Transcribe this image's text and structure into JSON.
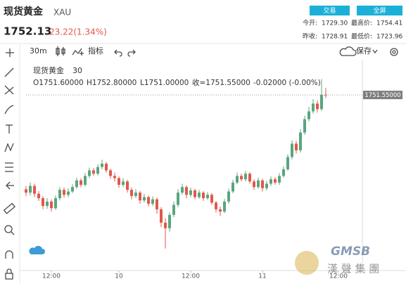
{
  "header": {
    "title": "现货黄金",
    "symbol": "XAU",
    "price": "1752.13",
    "change": "23.22(1.34%)",
    "buttons": [
      "交易",
      "全屏"
    ],
    "stats": [
      {
        "label": "今开:",
        "value": "1729.30"
      },
      {
        "label": "最高价:",
        "value": "1754.41"
      },
      {
        "label": "昨收:",
        "value": "1728.91"
      },
      {
        "label": "最低价:",
        "value": "1723.96"
      }
    ]
  },
  "toolbar": {
    "interval": "30m",
    "indicators": "指标",
    "save": "保存"
  },
  "chart_data": {
    "type": "candlestick",
    "legend": {
      "name": "现货黄金",
      "interval": "30",
      "open": "O1751.60000",
      "high": "H1752.80000",
      "low": "L1751.00000",
      "close": "收=1751.55000",
      "change": "-0.02000 (-0.00%)"
    },
    "up_color": "#5aa57e",
    "down_color": "#e0584b",
    "ylim": [
      1720,
      1757.5
    ],
    "last_price": {
      "value": 1751.55,
      "label": "1751.55000"
    },
    "categories": [
      null,
      null,
      null,
      null,
      null,
      null,
      "12:00",
      null,
      null,
      null,
      null,
      null,
      null,
      null,
      null,
      null,
      null,
      null,
      null,
      null,
      null,
      null,
      "10",
      null,
      null,
      null,
      null,
      null,
      null,
      null,
      null,
      null,
      null,
      null,
      null,
      null,
      null,
      null,
      null,
      "12:00",
      null,
      null,
      null,
      null,
      null,
      null,
      null,
      null,
      null,
      null,
      null,
      null,
      null,
      null,
      null,
      null,
      "11",
      null,
      null,
      null,
      null,
      null,
      null,
      null,
      null,
      null,
      null,
      null,
      null,
      null,
      null,
      null,
      null,
      null,
      "12:00",
      null
    ],
    "open": [
      1734.6,
      1734.0,
      1735.2,
      1733.8,
      1733.0,
      1731.6,
      1732.4,
      1731.2,
      1733.0,
      1734.5,
      1733.6,
      1734.2,
      1735.0,
      1736.2,
      1735.4,
      1737.0,
      1738.0,
      1737.4,
      1738.6,
      1739.2,
      1738.0,
      1737.0,
      1736.6,
      1735.4,
      1736.0,
      1734.5,
      1733.4,
      1734.0,
      1732.6,
      1733.2,
      1732.0,
      1732.8,
      1731.0,
      1728.6,
      1727.6,
      1730.0,
      1731.8,
      1734.0,
      1735.0,
      1733.6,
      1734.4,
      1733.2,
      1734.0,
      1733.0,
      1733.6,
      1732.2,
      1731.0,
      1730.6,
      1732.4,
      1734.2,
      1735.8,
      1737.0,
      1736.4,
      1737.4,
      1736.0,
      1735.0,
      1736.2,
      1734.8,
      1735.6,
      1736.4,
      1735.8,
      1737.0,
      1738.2,
      1740.4,
      1742.8,
      1741.6,
      1744.8,
      1747.2,
      1748.6,
      1750.0,
      1749.0,
      1751.6,
      null,
      null,
      null,
      null
    ],
    "high": [
      1735.2,
      1735.8,
      1735.6,
      1734.3,
      1733.4,
      1733.0,
      1732.8,
      1733.5,
      1735.0,
      1734.9,
      1734.8,
      1735.5,
      1736.7,
      1736.6,
      1737.5,
      1738.5,
      1738.4,
      1739.1,
      1739.9,
      1739.5,
      1738.3,
      1737.6,
      1736.9,
      1736.6,
      1736.3,
      1734.9,
      1734.6,
      1734.3,
      1733.8,
      1733.5,
      1733.3,
      1733.1,
      1731.4,
      1729.4,
      1730.5,
      1732.4,
      1734.6,
      1735.6,
      1735.3,
      1734.9,
      1734.7,
      1734.5,
      1734.3,
      1734.1,
      1733.9,
      1732.5,
      1731.5,
      1732.9,
      1734.7,
      1736.3,
      1737.6,
      1737.4,
      1737.9,
      1737.7,
      1736.4,
      1736.7,
      1736.5,
      1736.1,
      1736.9,
      1736.8,
      1737.5,
      1738.7,
      1740.9,
      1743.4,
      1743.3,
      1745.4,
      1747.8,
      1749.4,
      1750.8,
      1750.6,
      1754.41,
      1752.8,
      null,
      null,
      null,
      null
    ],
    "low": [
      1733.4,
      1733.5,
      1733.2,
      1732.5,
      1731.0,
      1731.1,
      1730.6,
      1730.9,
      1732.6,
      1733.1,
      1733.2,
      1733.9,
      1734.7,
      1735.0,
      1735.1,
      1736.6,
      1737.0,
      1737.1,
      1738.2,
      1737.6,
      1736.5,
      1736.0,
      1734.9,
      1735.0,
      1734.0,
      1732.8,
      1733.0,
      1732.0,
      1732.2,
      1731.5,
      1731.6,
      1730.2,
      1727.8,
      1723.96,
      1727.0,
      1729.6,
      1731.4,
      1733.6,
      1733.0,
      1733.2,
      1732.8,
      1732.9,
      1732.5,
      1732.7,
      1731.8,
      1730.4,
      1729.8,
      1730.3,
      1732.0,
      1733.9,
      1735.5,
      1736.0,
      1736.0,
      1735.6,
      1734.5,
      1734.7,
      1734.2,
      1734.4,
      1735.2,
      1735.4,
      1735.4,
      1736.7,
      1737.9,
      1740.0,
      1741.0,
      1741.2,
      1744.4,
      1746.8,
      1748.2,
      1748.4,
      1748.7,
      1751.0,
      null,
      null,
      null,
      null
    ],
    "close": [
      1734.0,
      1735.2,
      1733.8,
      1733.0,
      1731.6,
      1732.4,
      1731.2,
      1733.0,
      1734.5,
      1733.6,
      1734.2,
      1735.0,
      1736.2,
      1735.4,
      1737.0,
      1738.0,
      1737.4,
      1738.6,
      1739.2,
      1738.0,
      1737.0,
      1736.6,
      1735.4,
      1736.0,
      1734.5,
      1733.4,
      1734.0,
      1732.6,
      1733.2,
      1732.0,
      1732.8,
      1731.0,
      1728.6,
      1727.6,
      1730.0,
      1731.8,
      1734.0,
      1735.0,
      1733.6,
      1734.4,
      1733.2,
      1734.0,
      1733.0,
      1733.6,
      1732.2,
      1731.0,
      1730.6,
      1732.4,
      1734.2,
      1735.8,
      1737.0,
      1736.4,
      1737.4,
      1736.0,
      1735.0,
      1736.2,
      1734.8,
      1735.6,
      1736.4,
      1735.8,
      1737.0,
      1738.2,
      1740.4,
      1742.8,
      1741.6,
      1744.8,
      1747.2,
      1748.6,
      1750.0,
      1749.0,
      1751.6,
      1751.55,
      null,
      null,
      null,
      null
    ]
  },
  "watermark": {
    "logo": "GMSB",
    "name": "漢 聲 集 團"
  }
}
